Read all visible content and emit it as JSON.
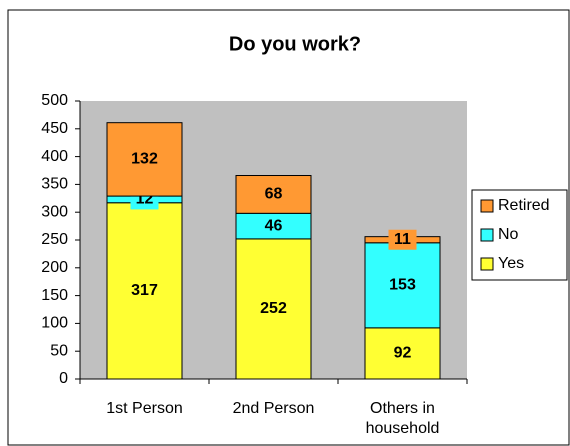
{
  "chart_data": {
    "type": "stacked_bar",
    "title": "Do you work?",
    "categories": [
      "1st Person",
      "2nd Person",
      "Others in household"
    ],
    "series": [
      {
        "name": "Yes",
        "color": "#ffff33",
        "values": [
          317,
          252,
          92
        ]
      },
      {
        "name": "No",
        "color": "#33ffff",
        "values": [
          12,
          46,
          153
        ]
      },
      {
        "name": "Retired",
        "color": "#ff9933",
        "values": [
          132,
          68,
          11
        ]
      }
    ],
    "ylim": [
      0,
      500
    ],
    "yticks": [
      0,
      50,
      100,
      150,
      200,
      250,
      300,
      350,
      400,
      450,
      500
    ],
    "legend": "right"
  }
}
